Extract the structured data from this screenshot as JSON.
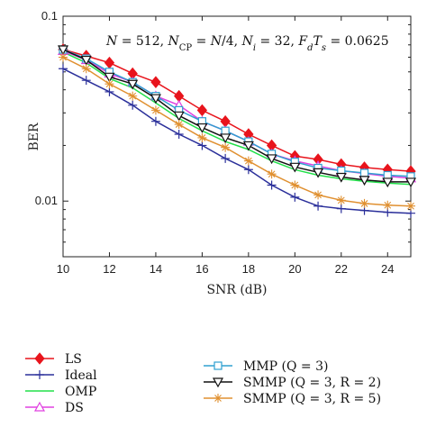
{
  "chart_data": {
    "type": "line",
    "title": "",
    "xlabel": "SNR (dB)",
    "ylabel": "BER",
    "y_scale": "log",
    "xlim": [
      10,
      25
    ],
    "ylim": [
      0.005,
      0.1
    ],
    "x_ticks": [
      10,
      12,
      14,
      16,
      18,
      20,
      22,
      24
    ],
    "y_ticks": [
      0.01,
      0.1
    ],
    "y_tick_labels": [
      "0.01",
      "0.1"
    ],
    "grid": false,
    "legend_position": "bottom",
    "annotation": {
      "parts": [
        [
          "N",
          "i"
        ],
        [
          " = 512, ",
          "n"
        ],
        [
          "N",
          "i"
        ],
        [
          "CP",
          "sub"
        ],
        [
          " = ",
          "n"
        ],
        [
          "N",
          "i"
        ],
        [
          "/4, ",
          "n"
        ],
        [
          "N",
          "i"
        ],
        [
          "i",
          "subi"
        ],
        [
          " = 32, ",
          "n"
        ],
        [
          "F",
          "i"
        ],
        [
          "d",
          "subi"
        ],
        [
          "T",
          "i"
        ],
        [
          "s",
          "subi"
        ],
        [
          " = 0.0625",
          "n"
        ]
      ]
    },
    "x": [
      10,
      11,
      12,
      13,
      14,
      15,
      16,
      17,
      18,
      19,
      20,
      21,
      22,
      23,
      24,
      25
    ],
    "series": [
      {
        "name": "LS",
        "color": "#e8141c",
        "marker": "diamond",
        "values": [
          0.066,
          0.061,
          0.056,
          0.049,
          0.044,
          0.037,
          0.031,
          0.027,
          0.023,
          0.02,
          0.0175,
          0.0168,
          0.0158,
          0.0152,
          0.0148,
          0.0145
        ]
      },
      {
        "name": "Ideal",
        "color": "#2a2f9a",
        "marker": "plus",
        "values": [
          0.052,
          0.045,
          0.039,
          0.033,
          0.027,
          0.023,
          0.02,
          0.017,
          0.0148,
          0.0122,
          0.0105,
          0.0094,
          0.0091,
          0.0089,
          0.0087,
          0.0086
        ]
      },
      {
        "name": "OMP",
        "color": "#22e04a",
        "marker": "none",
        "values": [
          0.064,
          0.056,
          0.046,
          0.041,
          0.034,
          0.028,
          0.024,
          0.021,
          0.019,
          0.0165,
          0.0148,
          0.0138,
          0.0132,
          0.0128,
          0.0125,
          0.0123
        ]
      },
      {
        "name": "DS",
        "color": "#e040e0",
        "marker": "triangle-up",
        "values": [
          0.065,
          0.058,
          0.049,
          0.044,
          0.037,
          0.033,
          0.027,
          0.024,
          0.021,
          0.018,
          0.0165,
          0.0155,
          0.0146,
          0.0141,
          0.0136,
          0.0133
        ]
      },
      {
        "name": "MMP (Q = 3)",
        "color": "#30a0d0",
        "marker": "square",
        "values": [
          0.066,
          0.059,
          0.05,
          0.044,
          0.037,
          0.031,
          0.027,
          0.024,
          0.021,
          0.018,
          0.0163,
          0.0151,
          0.0146,
          0.0142,
          0.0138,
          0.0136
        ]
      },
      {
        "name": "SMMP (Q = 3, R = 2)",
        "color": "#111111",
        "marker": "triangle-down",
        "values": [
          0.066,
          0.058,
          0.047,
          0.043,
          0.036,
          0.029,
          0.025,
          0.022,
          0.02,
          0.017,
          0.0153,
          0.0143,
          0.0135,
          0.013,
          0.0127,
          0.0127
        ]
      },
      {
        "name": "SMMP (Q = 3, R = 5)",
        "color": "#e09030",
        "marker": "asterisk",
        "values": [
          0.06,
          0.052,
          0.043,
          0.037,
          0.031,
          0.026,
          0.022,
          0.0195,
          0.0165,
          0.014,
          0.0122,
          0.0108,
          0.0101,
          0.0097,
          0.0095,
          0.0094
        ]
      }
    ]
  }
}
